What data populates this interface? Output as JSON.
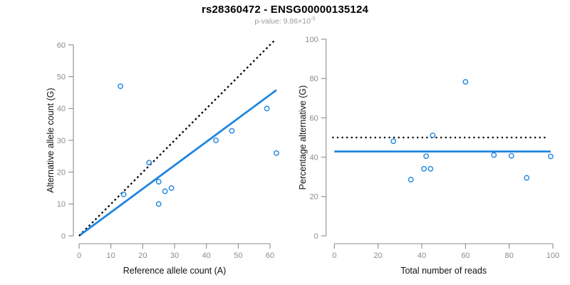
{
  "title": "rs28360472 - ENSG00000135124",
  "subtitle": {
    "base": "p-value: 9.86×10",
    "exponent": "-5"
  },
  "colors": {
    "accent_blue": "#1e86e0",
    "line_black": "#000000",
    "axis_gray": "#8c8c8c",
    "tick_label_gray": "#8c8c8c",
    "subtitle_gray": "#9b9b9b",
    "title_black": "#000000",
    "background": "#ffffff"
  },
  "chart_data": [
    {
      "type": "scatter",
      "name": "allele-counts",
      "xlabel": "Reference allele count (A)",
      "ylabel": "Alternative allele count (G)",
      "xlim": [
        0,
        62
      ],
      "ylim": [
        0,
        61.5
      ],
      "xticks": [
        0,
        10,
        20,
        30,
        40,
        50,
        60
      ],
      "yticks": [
        0,
        10,
        20,
        30,
        40,
        50,
        60
      ],
      "grid": false,
      "legend": "none",
      "marker": "open-circle",
      "points": [
        [
          13,
          47
        ],
        [
          14,
          13
        ],
        [
          22,
          23
        ],
        [
          25,
          10
        ],
        [
          25,
          17
        ],
        [
          27,
          14
        ],
        [
          29,
          15
        ],
        [
          43,
          30
        ],
        [
          48,
          33
        ],
        [
          59,
          40
        ],
        [
          62,
          26
        ]
      ],
      "lines": [
        {
          "name": "identity-line",
          "style": "dashed",
          "color": "#000000",
          "x": [
            0,
            61.4
          ],
          "y": [
            0,
            61.4
          ]
        },
        {
          "name": "regression-line",
          "style": "solid",
          "color": "#1e86e0",
          "x": [
            0.4,
            62
          ],
          "y": [
            0.3,
            45.8
          ]
        }
      ]
    },
    {
      "type": "scatter",
      "name": "percentage-vs-reads",
      "xlabel": "Total number of reads",
      "ylabel": "Percentage alternative (G)",
      "xlim": [
        0,
        100
      ],
      "ylim": [
        0,
        100
      ],
      "xticks": [
        0,
        20,
        40,
        60,
        80,
        100
      ],
      "yticks": [
        0,
        20,
        40,
        60,
        80,
        100
      ],
      "grid": false,
      "legend": "none",
      "marker": "open-circle",
      "points": [
        [
          27,
          48.1
        ],
        [
          35,
          28.6
        ],
        [
          41,
          34.1
        ],
        [
          42,
          40.5
        ],
        [
          44,
          34.1
        ],
        [
          45,
          51.1
        ],
        [
          60,
          78.3
        ],
        [
          73,
          41.1
        ],
        [
          81,
          40.7
        ],
        [
          88,
          29.5
        ],
        [
          99,
          40.4
        ]
      ],
      "lines": [
        {
          "name": "fifty-percent-line",
          "style": "dotted",
          "color": "#000000",
          "x": [
            -1,
            97
          ],
          "y": [
            50,
            50
          ]
        },
        {
          "name": "mean-percentage-line",
          "style": "solid",
          "color": "#1e86e0",
          "x": [
            0,
            99
          ],
          "y": [
            42.9,
            42.9
          ]
        }
      ]
    }
  ]
}
